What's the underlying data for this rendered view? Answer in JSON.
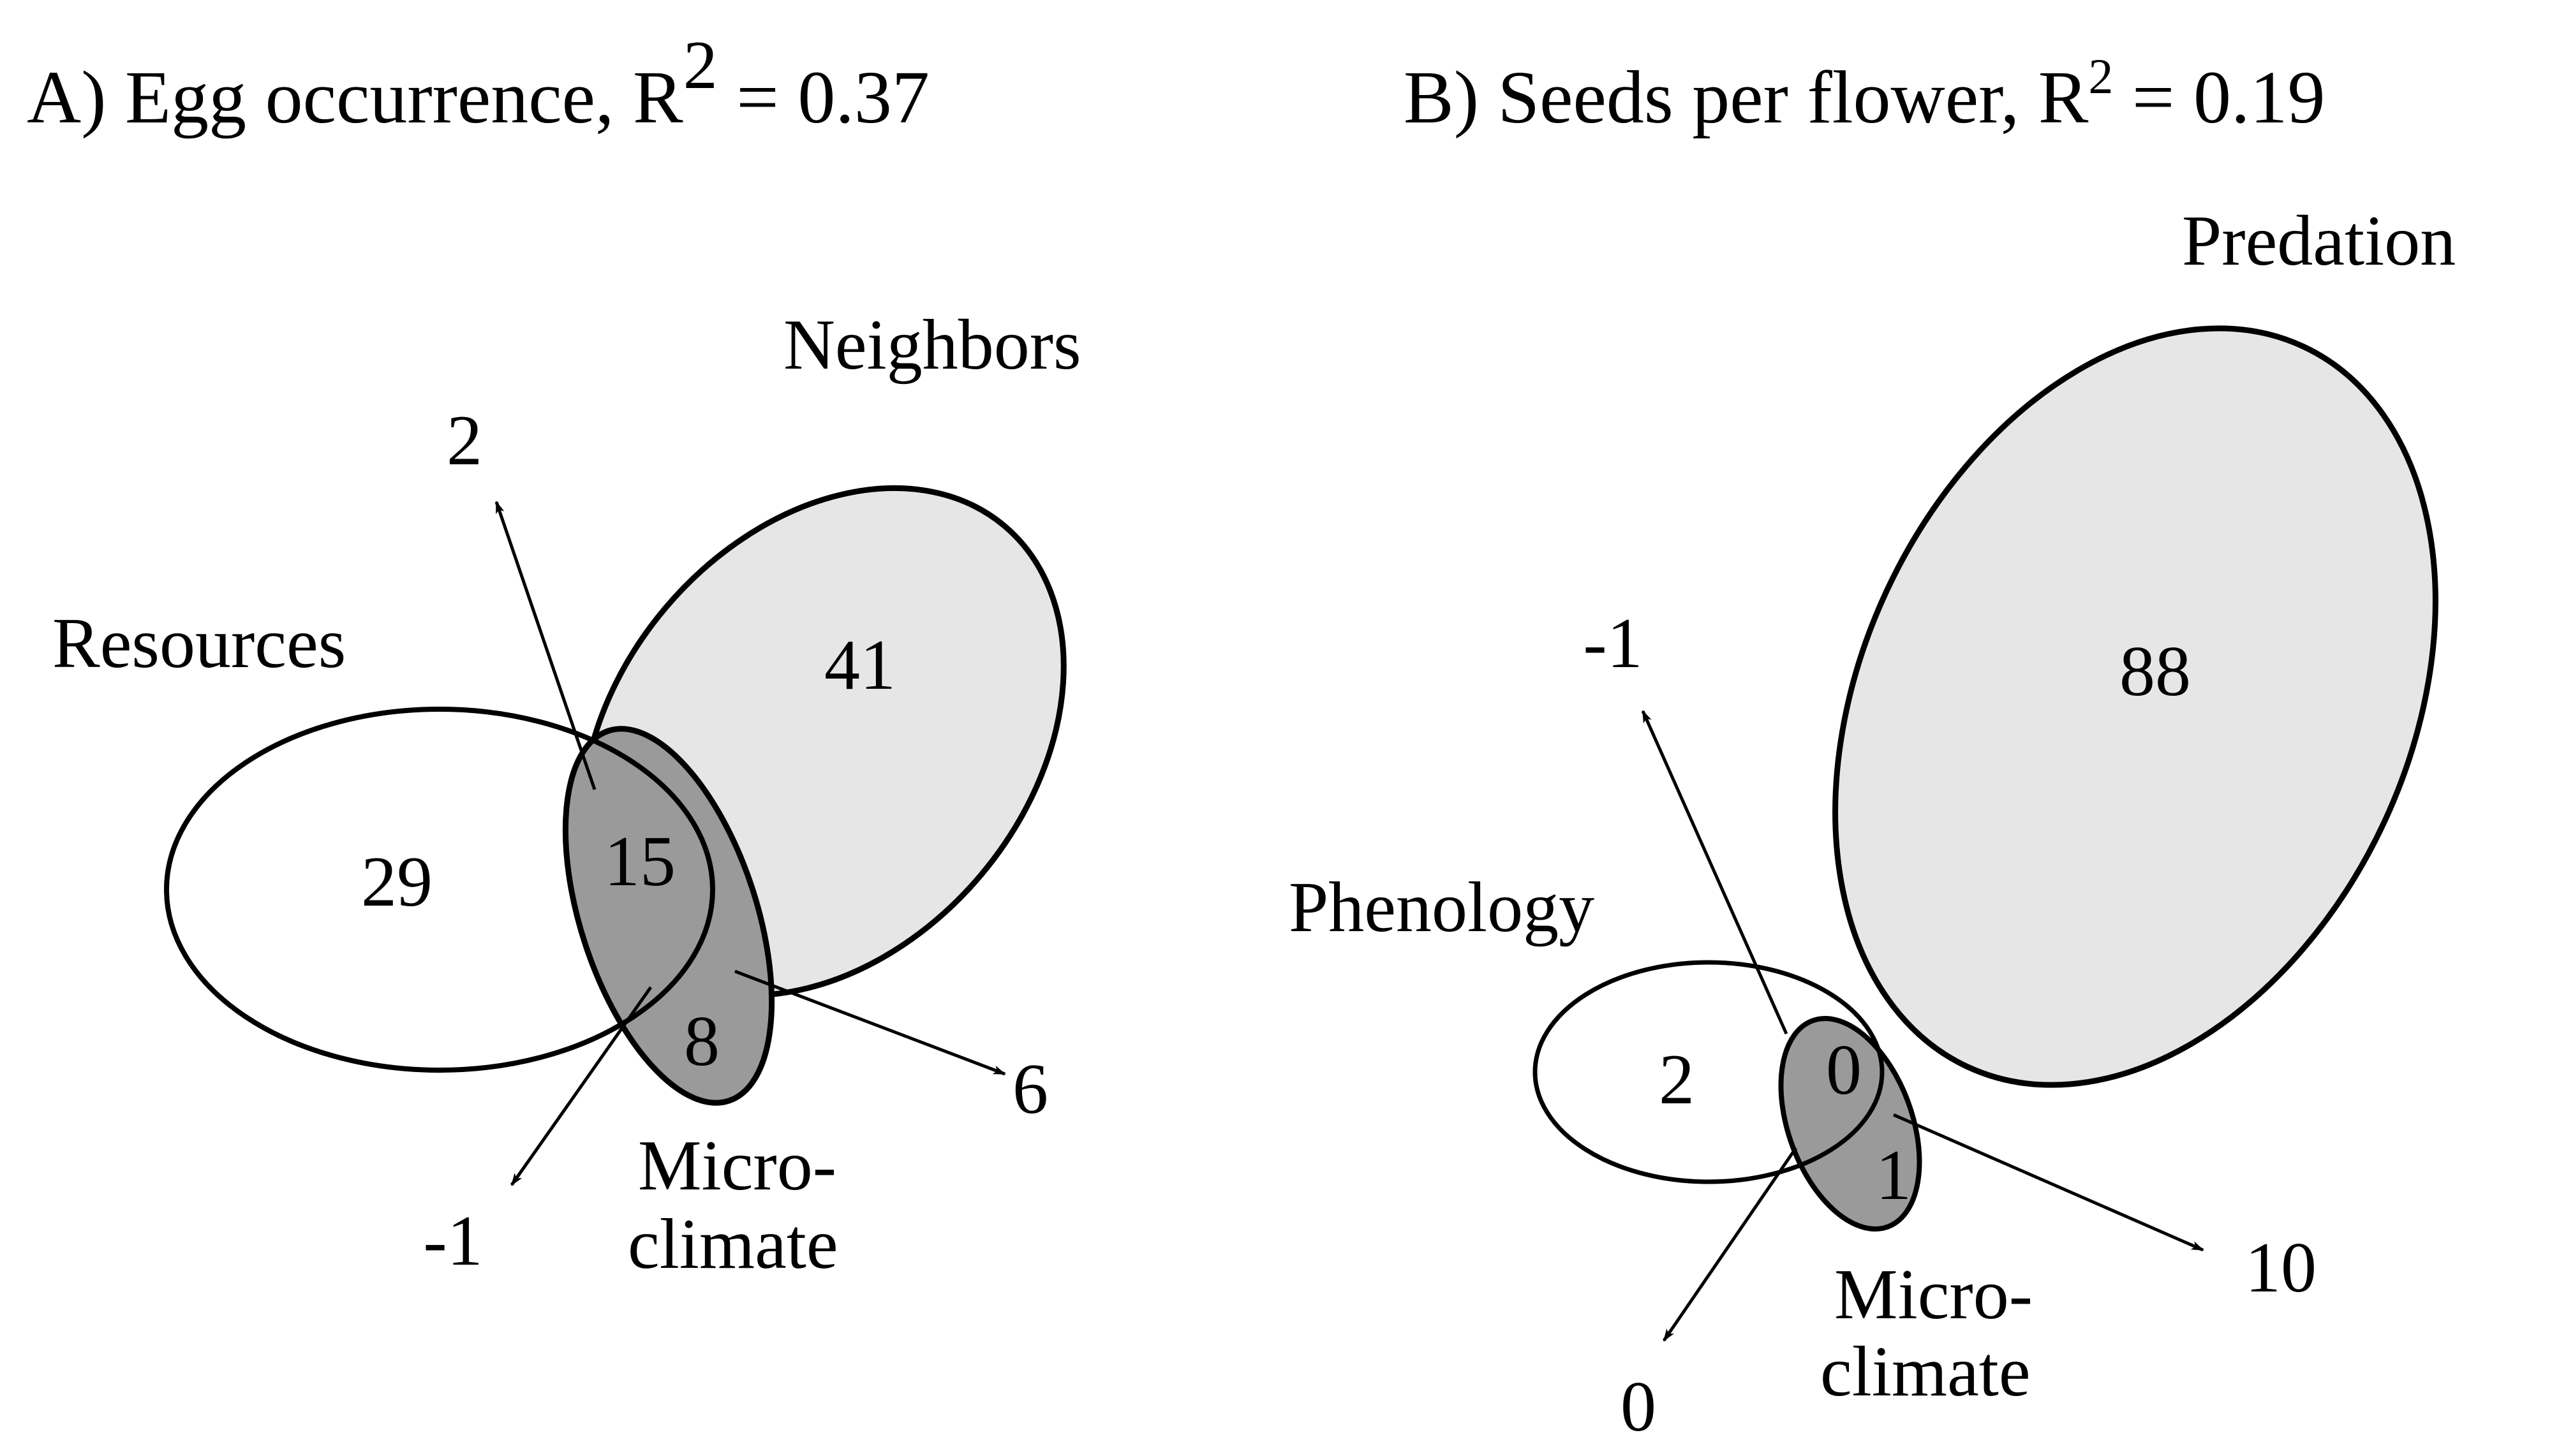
{
  "panel_a": {
    "title_main": "A) Egg occurrence, R",
    "title_exp": "2",
    "title_tail": " = 0.37",
    "labels": {
      "neighbors": "Neighbors",
      "resources": "Resources",
      "micro_line1": "Micro-",
      "micro_line2": "climate"
    },
    "values": {
      "resources_only": "29",
      "neighbors_only": "41",
      "overlap_center": "15",
      "micro_only": "8",
      "arrow_up": "2",
      "arrow_right": "6",
      "arrow_down": "-1"
    },
    "colors": {
      "neighbors_fill": "#e6e6e6",
      "micro_fill": "#9a9a9a",
      "resources_fill": "none"
    }
  },
  "panel_b": {
    "title_main": "B) Seeds per flower, R",
    "title_exp": "2",
    "title_tail": " = 0.19",
    "labels": {
      "predation": "Predation",
      "phenology": "Phenology",
      "micro_line1": "Micro-",
      "micro_line2": "climate"
    },
    "values": {
      "predation_only": "88",
      "phenology_only": "2",
      "overlap_center": "0",
      "micro_only": "1",
      "arrow_up": "-1",
      "arrow_right": "10",
      "arrow_down": "0"
    },
    "colors": {
      "predation_fill": "#e6e6e6",
      "micro_fill": "#9a9a9a",
      "phenology_fill": "none"
    }
  }
}
